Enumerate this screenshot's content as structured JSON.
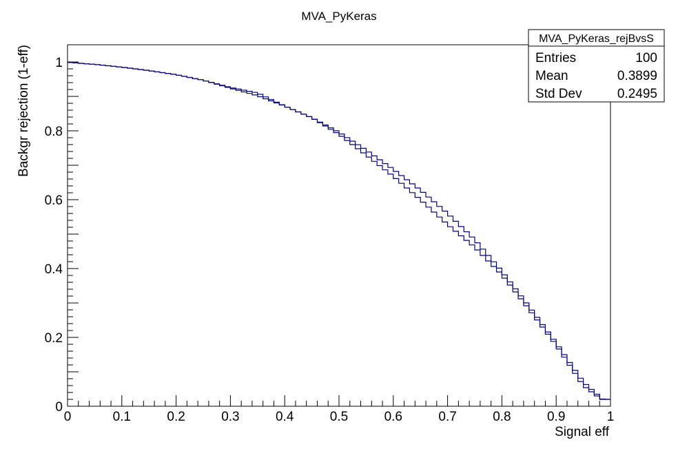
{
  "chart_data": {
    "type": "line",
    "title": "MVA_PyKeras",
    "xlabel": "Signal eff",
    "ylabel": "Backgr rejection (1-eff)",
    "xlim": [
      0,
      1
    ],
    "ylim": [
      0,
      1.05
    ],
    "x_ticks": [
      "0",
      "0.1",
      "0.2",
      "0.3",
      "0.4",
      "0.5",
      "0.6",
      "0.7",
      "0.8",
      "0.9",
      "1"
    ],
    "y_ticks": [
      "0",
      "0.2",
      "0.4",
      "0.6",
      "0.8",
      "1"
    ],
    "grid": false,
    "x": [
      0.0,
      0.05,
      0.1,
      0.15,
      0.2,
      0.25,
      0.3,
      0.35,
      0.4,
      0.45,
      0.5,
      0.55,
      0.6,
      0.65,
      0.7,
      0.75,
      0.8,
      0.85,
      0.9,
      0.95,
      1.0
    ],
    "series": [
      {
        "color": "#000080",
        "values": [
          0.999,
          0.993,
          0.985,
          0.975,
          0.963,
          0.947,
          0.924,
          0.902,
          0.872,
          0.838,
          0.796,
          0.744,
          0.688,
          0.628,
          0.56,
          0.484,
          0.392,
          0.29,
          0.184,
          0.07,
          0.0
        ]
      },
      {
        "color": "#000080",
        "values": [
          0.999,
          0.993,
          0.985,
          0.975,
          0.963,
          0.947,
          0.926,
          0.91,
          0.872,
          0.838,
          0.79,
          0.73,
          0.668,
          0.6,
          0.528,
          0.462,
          0.382,
          0.282,
          0.178,
          0.06,
          0.0
        ]
      }
    ]
  },
  "stats_box": {
    "title": "MVA_PyKeras_rejBvsS",
    "rows": [
      {
        "label": "Entries",
        "value": "100"
      },
      {
        "label": "Mean",
        "value": "0.3899"
      },
      {
        "label": "Std Dev",
        "value": "0.2495"
      }
    ]
  }
}
